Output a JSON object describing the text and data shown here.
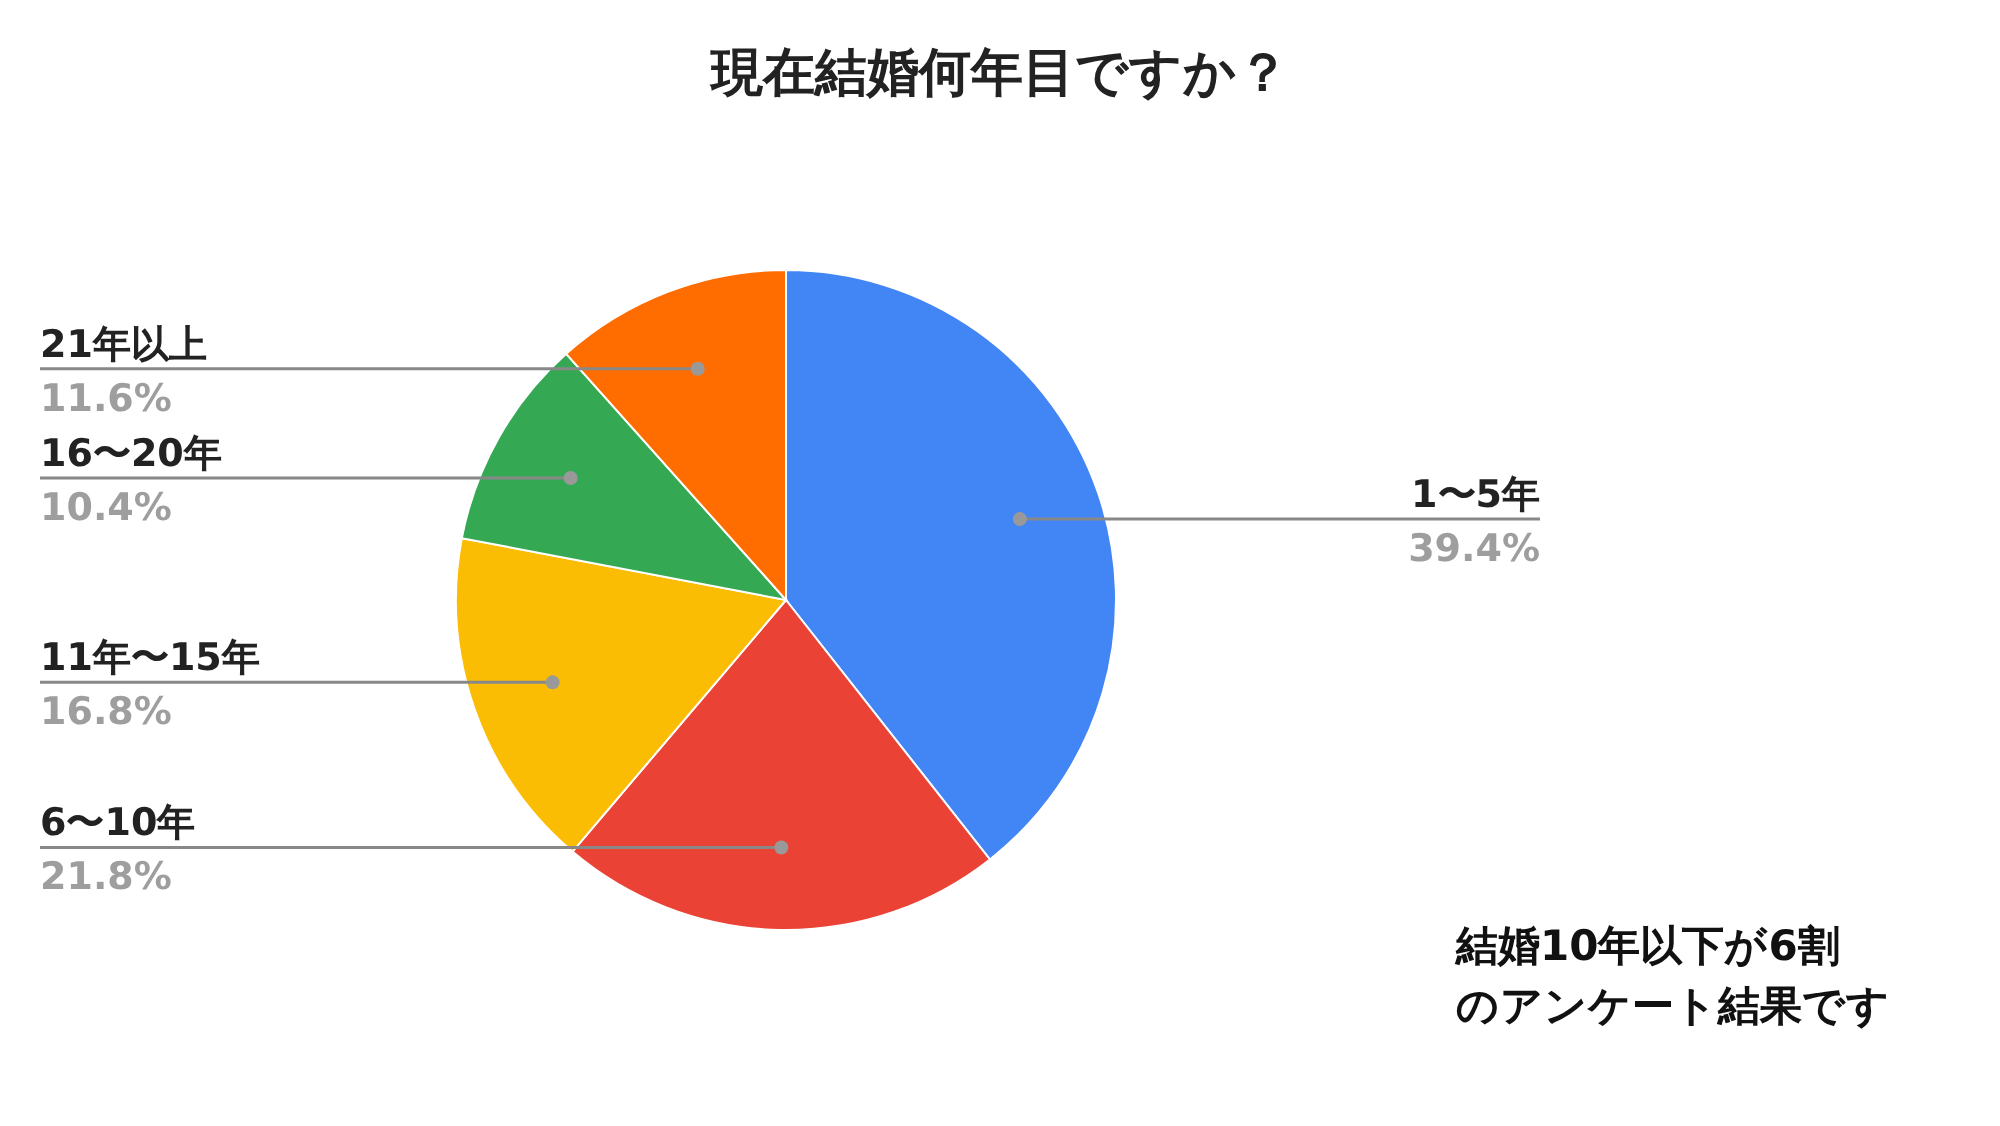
{
  "chart_data": {
    "type": "pie",
    "title": "現在結婚何年目ですか？",
    "categories": [
      "1〜5年",
      "6〜10年",
      "11年〜15年",
      "16〜20年",
      "21年以上"
    ],
    "values": [
      39.4,
      21.8,
      16.8,
      10.4,
      11.6
    ],
    "colors": [
      "#4285f4",
      "#ea4335",
      "#fbbc04",
      "#34a853",
      "#ff6d01"
    ],
    "value_labels": [
      "39.4%",
      "21.8%",
      "16.8%",
      "10.4%",
      "11.6%"
    ],
    "annotations": [
      "結婚10年以下が6割",
      "のアンケート結果です"
    ]
  }
}
